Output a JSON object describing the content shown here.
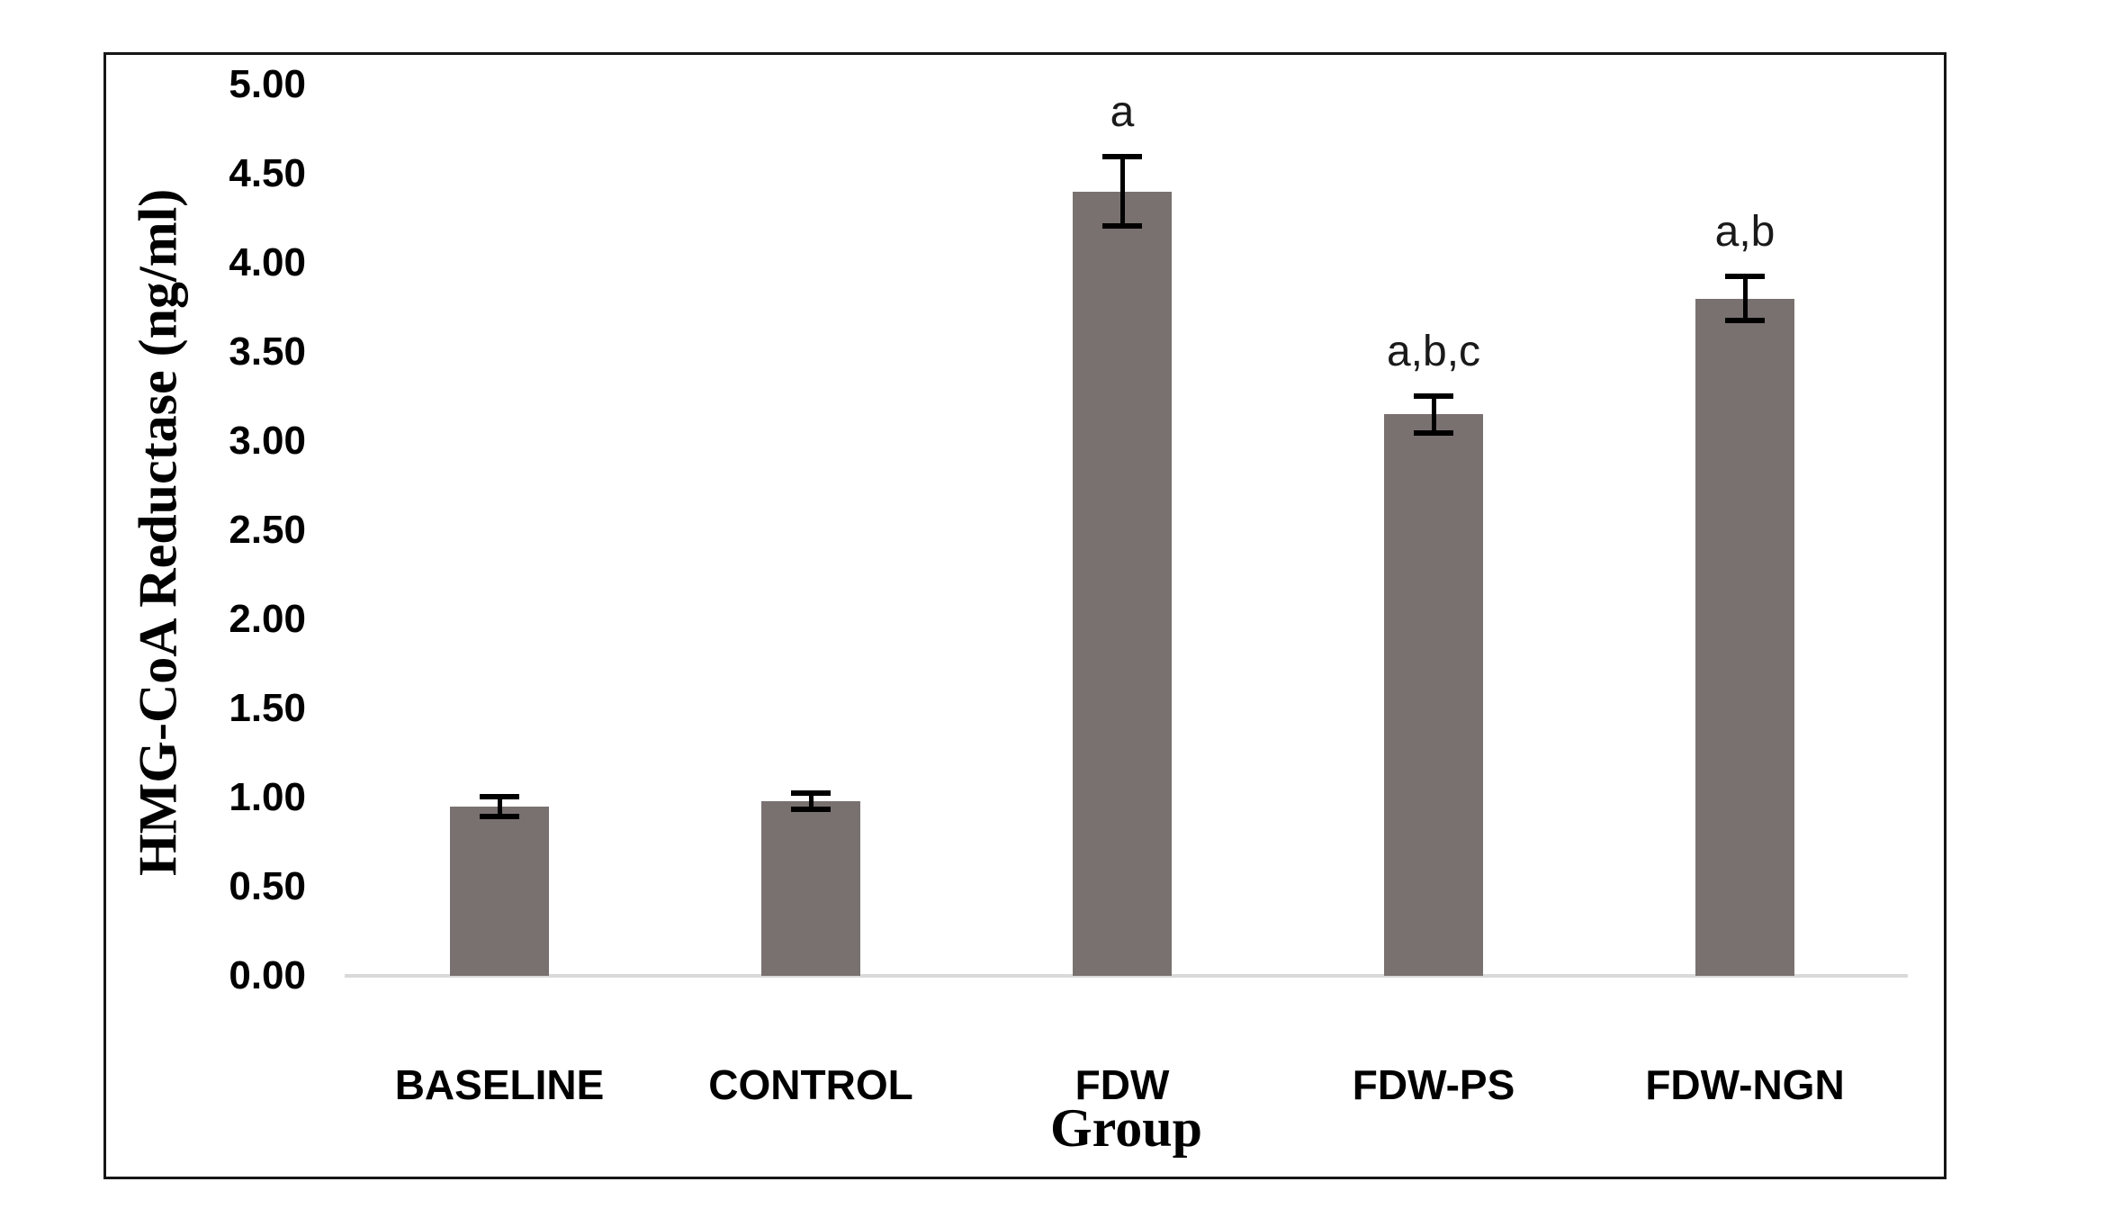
{
  "chart_data": {
    "type": "bar",
    "title": "",
    "xlabel": "Group",
    "ylabel": "HMG-CoA Reductase (ng/ml)",
    "categories": [
      "BASELINE",
      "CONTROL",
      "FDW",
      "FDW-PS",
      "FDW-NGN"
    ],
    "values": [
      0.95,
      0.98,
      4.4,
      3.15,
      3.8
    ],
    "error_bars": [
      0.06,
      0.05,
      0.2,
      0.11,
      0.13
    ],
    "annotations": [
      "",
      "",
      "a",
      "a,b,c",
      "a,b"
    ],
    "ylim": [
      0,
      5
    ],
    "ytick_step": 0.5,
    "ytick_labels": [
      "0.00",
      "0.50",
      "1.00",
      "1.50",
      "2.00",
      "2.50",
      "3.00",
      "3.50",
      "4.00",
      "4.50",
      "5.00"
    ],
    "grid": false,
    "legend": false,
    "bar_color": "#797170",
    "axis_line_color": "#d9d9d9",
    "frame_border_color": "#161616",
    "text_color": "#000000"
  }
}
